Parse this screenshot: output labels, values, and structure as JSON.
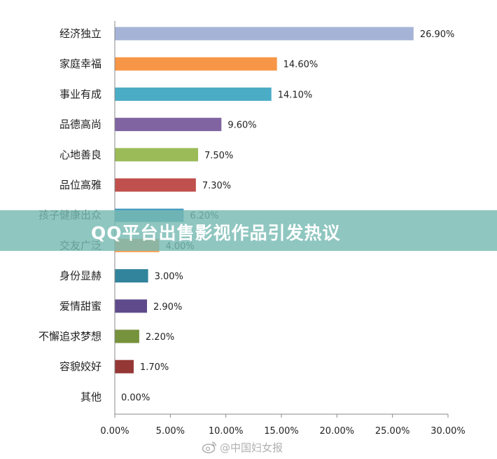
{
  "chart_data": {
    "type": "bar",
    "orientation": "horizontal",
    "categories": [
      "经济独立",
      "家庭幸福",
      "事业有成",
      "品德高尚",
      "心地善良",
      "品位高雅",
      "孩子健康出众",
      "交友广泛",
      "身份显赫",
      "爱情甜蜜",
      "不懈追求梦想",
      "容貌姣好",
      "其他"
    ],
    "values": [
      26.9,
      14.6,
      14.1,
      9.6,
      7.5,
      7.3,
      6.2,
      4.0,
      3.0,
      2.9,
      2.2,
      1.7,
      0.0
    ],
    "value_labels": [
      "26.90%",
      "14.60%",
      "14.10%",
      "9.60%",
      "7.50%",
      "7.30%",
      "6.20%",
      "4.00%",
      "3.00%",
      "2.90%",
      "2.20%",
      "1.70%",
      "0.00%"
    ],
    "colors": [
      "#a5b4d6",
      "#f79646",
      "#4bacc6",
      "#8064a2",
      "#9bbb59",
      "#c0504d",
      "#4a9cc0",
      "#f7a157",
      "#31849b",
      "#5f4b8b",
      "#76923c",
      "#953735",
      "#a5b4d6"
    ],
    "xlim": [
      0,
      30
    ],
    "xticks": [
      0,
      5,
      10,
      15,
      20,
      25,
      30
    ],
    "xtick_labels": [
      "0.00%",
      "5.00%",
      "10.00%",
      "15.00%",
      "20.00%",
      "25.00%",
      "30.00%"
    ],
    "grid": false,
    "title": "",
    "xlabel": "",
    "ylabel": ""
  },
  "banner": {
    "title": "QQ平台出售影视作品引发热议"
  },
  "watermark": {
    "text": "@中国妇女报",
    "icon": "weibo-icon"
  }
}
